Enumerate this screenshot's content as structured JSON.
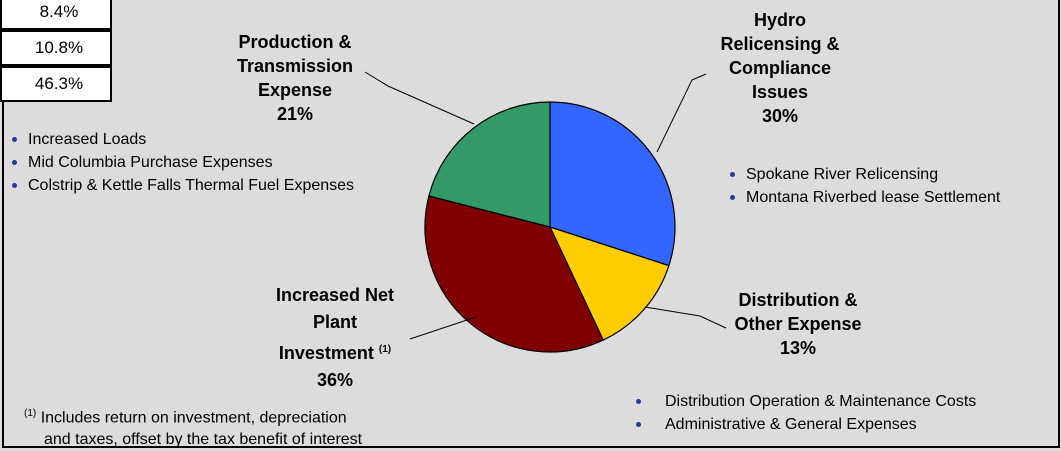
{
  "table": {
    "cells": [
      "8.4%",
      "10.8%",
      "46.3%"
    ]
  },
  "chart_data": {
    "type": "pie",
    "slices": [
      {
        "label": "Hydro Relicensing & Compliance Issues",
        "value": 30,
        "value_label": "30%",
        "color": "#3366ff"
      },
      {
        "label": "Distribution & Other Expense",
        "value": 13,
        "value_label": "13%",
        "color": "#ffcc00"
      },
      {
        "label": "Increased Net Plant Investment",
        "value": 36,
        "value_label": "36%",
        "color": "#800000"
      },
      {
        "label": "Production & Transmission Expense",
        "value": 21,
        "value_label": "21%",
        "color": "#339966"
      }
    ]
  },
  "labels": {
    "hydro": [
      "Hydro",
      "Relicensing &",
      "Compliance",
      "Issues"
    ],
    "hydro_pct": "30%",
    "dist": [
      "Distribution &",
      "Other Expense"
    ],
    "dist_pct": "13%",
    "net": [
      "Increased Net",
      "Plant",
      "Investment"
    ],
    "net_sup": "(1)",
    "net_pct": "36%",
    "prod": [
      "Production &",
      "Transmission",
      "Expense"
    ],
    "prod_pct": "21%"
  },
  "bullets": {
    "production": [
      "Increased Loads",
      "Mid Columbia Purchase Expenses",
      "Colstrip & Kettle Falls Thermal Fuel Expenses"
    ],
    "hydro": [
      "Spokane River Relicensing",
      "Montana Riverbed lease Settlement"
    ],
    "distribution": [
      "Distribution Operation & Maintenance Costs",
      "Administrative & General Expenses"
    ]
  },
  "footnote": {
    "marker": "(1)",
    "line1": "Includes return on investment, depreciation",
    "line2": "and taxes, offset by the tax benefit of interest"
  }
}
